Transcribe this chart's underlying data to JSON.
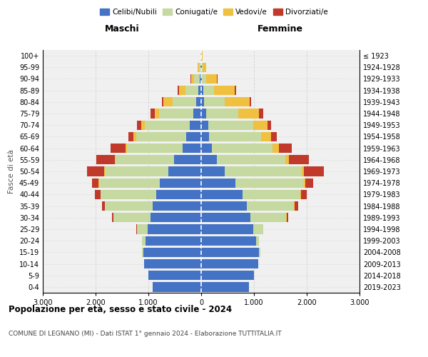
{
  "age_groups": [
    "0-4",
    "5-9",
    "10-14",
    "15-19",
    "20-24",
    "25-29",
    "30-34",
    "35-39",
    "40-44",
    "45-49",
    "50-54",
    "55-59",
    "60-64",
    "65-69",
    "70-74",
    "75-79",
    "80-84",
    "85-89",
    "90-94",
    "95-99",
    "100+"
  ],
  "birth_years": [
    "2019-2023",
    "2014-2018",
    "2009-2013",
    "2004-2008",
    "1999-2003",
    "1994-1998",
    "1989-1993",
    "1984-1988",
    "1979-1983",
    "1974-1978",
    "1969-1973",
    "1964-1968",
    "1959-1963",
    "1954-1958",
    "1949-1953",
    "1944-1948",
    "1939-1943",
    "1934-1938",
    "1929-1933",
    "1924-1928",
    "≤ 1923"
  ],
  "colors": {
    "celibi": "#4472c4",
    "coniugati": "#c5d9a0",
    "vedovi": "#f0c040",
    "divorziati": "#c0392b"
  },
  "maschi": {
    "celibi": [
      920,
      1000,
      1080,
      1100,
      1060,
      1020,
      960,
      920,
      850,
      780,
      620,
      520,
      350,
      280,
      220,
      150,
      90,
      50,
      30,
      15,
      5
    ],
    "coniugati": [
      0,
      0,
      5,
      20,
      60,
      200,
      700,
      900,
      1050,
      1150,
      1200,
      1100,
      1050,
      950,
      850,
      650,
      450,
      250,
      100,
      30,
      10
    ],
    "vedovi": [
      0,
      0,
      0,
      0,
      0,
      0,
      5,
      5,
      10,
      10,
      20,
      20,
      30,
      50,
      70,
      80,
      180,
      120,
      60,
      20,
      5
    ],
    "divorziati": [
      0,
      0,
      0,
      0,
      5,
      5,
      30,
      60,
      100,
      130,
      320,
      350,
      280,
      100,
      80,
      80,
      30,
      20,
      10,
      5,
      0
    ]
  },
  "femmine": {
    "celibi": [
      900,
      1000,
      1080,
      1100,
      1040,
      990,
      930,
      860,
      780,
      650,
      450,
      300,
      200,
      150,
      130,
      100,
      60,
      40,
      20,
      10,
      5
    ],
    "coniugati": [
      0,
      0,
      5,
      15,
      50,
      180,
      680,
      900,
      1100,
      1300,
      1450,
      1300,
      1150,
      980,
      850,
      600,
      380,
      200,
      80,
      20,
      5
    ],
    "vedovi": [
      0,
      0,
      0,
      0,
      0,
      0,
      5,
      10,
      15,
      20,
      40,
      60,
      120,
      200,
      280,
      400,
      480,
      400,
      200,
      60,
      20
    ],
    "divorziati": [
      0,
      0,
      0,
      0,
      5,
      5,
      30,
      70,
      100,
      150,
      380,
      380,
      250,
      100,
      70,
      70,
      30,
      20,
      10,
      5,
      0
    ]
  },
  "xlim": 3000,
  "title": "Popolazione per età, sesso e stato civile - 2024",
  "subtitle": "COMUNE DI LEGNANO (MI) - Dati ISTAT 1° gennaio 2024 - Elaborazione TUTTITALIA.IT",
  "ylabel_left": "Fasce di età",
  "xlabel_maschi": "Maschi",
  "xlabel_femmine": "Femmine",
  "legend_labels": [
    "Celibi/Nubili",
    "Coniugati/e",
    "Vedovi/e",
    "Divorziati/e"
  ],
  "bg_color": "#ffffff",
  "plot_bg": "#f0f0f0",
  "grid_color": "#cccccc"
}
